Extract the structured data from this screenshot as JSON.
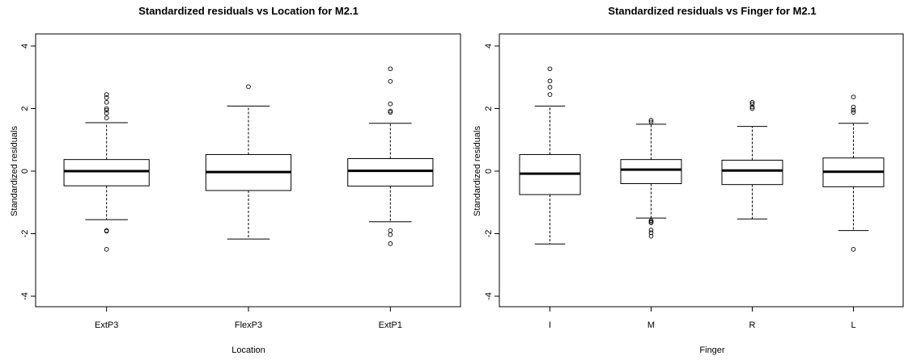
{
  "chart_data": [
    {
      "type": "box",
      "title": "Standardized residuals vs Location for M2.1",
      "xlabel": "Location",
      "ylabel": "Standardized residuals",
      "ylim": [
        -4,
        4
      ],
      "yticks": [
        "-4",
        "-2",
        "0",
        "2",
        "4"
      ],
      "grid": false,
      "categories": [
        "ExtP3",
        "FlexP3",
        "ExtP1"
      ],
      "boxes": [
        {
          "min": -1.55,
          "q1": -0.47,
          "median": 0.0,
          "q3": 0.37,
          "max": 1.55,
          "outliers": [
            1.7,
            1.85,
            1.95,
            2.0,
            2.2,
            2.35,
            2.45,
            -1.9,
            -1.92,
            -2.5
          ]
        },
        {
          "min": -2.17,
          "q1": -0.62,
          "median": -0.03,
          "q3": 0.53,
          "max": 2.08,
          "outliers": [
            2.7
          ]
        },
        {
          "min": -1.62,
          "q1": -0.48,
          "median": 0.01,
          "q3": 0.4,
          "max": 1.53,
          "outliers": [
            1.88,
            1.92,
            2.15,
            2.87,
            3.27,
            -1.9,
            -2.03,
            -2.32
          ]
        }
      ]
    },
    {
      "type": "box",
      "title": "Standardized residuals vs Finger for M2.1",
      "xlabel": "Finger",
      "ylabel": "Standardized residuals",
      "ylim": [
        -4,
        4
      ],
      "yticks": [
        "-4",
        "-2",
        "0",
        "2",
        "4"
      ],
      "grid": false,
      "categories": [
        "I",
        "M",
        "R",
        "L"
      ],
      "boxes": [
        {
          "min": -2.33,
          "q1": -0.75,
          "median": -0.08,
          "q3": 0.53,
          "max": 2.08,
          "outliers": [
            2.45,
            2.68,
            2.88,
            3.27
          ]
        },
        {
          "min": -1.5,
          "q1": -0.4,
          "median": 0.05,
          "q3": 0.37,
          "max": 1.5,
          "outliers": [
            1.57,
            1.63,
            -1.58,
            -1.62,
            -1.65,
            -1.88,
            -1.97,
            -2.08
          ]
        },
        {
          "min": -1.53,
          "q1": -0.43,
          "median": 0.02,
          "q3": 0.35,
          "max": 1.43,
          "outliers": [
            2.0,
            2.05,
            2.15,
            2.2
          ]
        },
        {
          "min": -1.9,
          "q1": -0.5,
          "median": -0.02,
          "q3": 0.42,
          "max": 1.53,
          "outliers": [
            1.88,
            1.95,
            2.05,
            2.37,
            -2.5
          ]
        }
      ]
    }
  ]
}
